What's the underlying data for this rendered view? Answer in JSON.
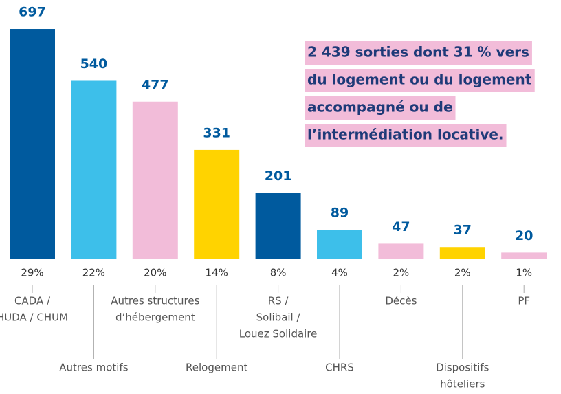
{
  "chart_data": {
    "type": "bar",
    "categories": [
      [
        "CADA /",
        "HUDA / CHUM"
      ],
      [
        "Autres motifs"
      ],
      [
        "Autres structures",
        "d’hébergement"
      ],
      [
        "Relogement"
      ],
      [
        "RS /",
        "Solibail /",
        "Louez Solidaire"
      ],
      [
        "CHRS"
      ],
      [
        "Décès"
      ],
      [
        "Dispositifs",
        "hôteliers"
      ],
      [
        "PF"
      ]
    ],
    "values": [
      697,
      540,
      477,
      331,
      201,
      89,
      47,
      37,
      20
    ],
    "shares": [
      "29%",
      "22%",
      "20%",
      "14%",
      "8%",
      "4%",
      "2%",
      "2%",
      "1%"
    ],
    "colors": [
      "#005a9e",
      "#3dbfea",
      "#f2bcd9",
      "#ffd300",
      "#005a9e",
      "#3dbfea",
      "#f2bcd9",
      "#ffd300",
      "#f2bcd9"
    ],
    "annotation": [
      "2 439 sorties dont 31 % vers",
      "du logement ou du logement",
      "accompagné ou de",
      "l’intermédiation locative."
    ]
  }
}
